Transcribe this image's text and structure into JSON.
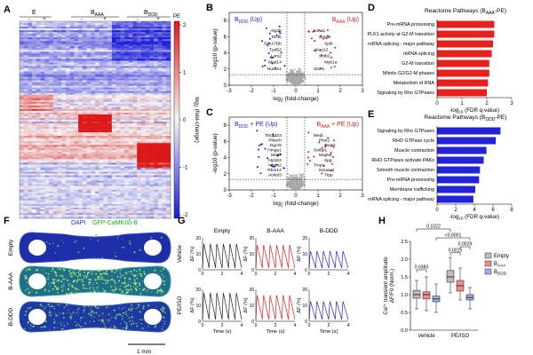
{
  "panels": {
    "A": {
      "letter": "A",
      "groups": [
        "E",
        "B",
        "B"
      ],
      "group_subs": [
        "",
        "AAA",
        "DDD"
      ],
      "pe_label": "PE",
      "col_marks": [
        "-",
        "+",
        "-",
        "+",
        "-",
        "+"
      ],
      "cbar_label": "log2 (fold-change)",
      "cbar_ticks": [
        "2",
        "1",
        "0",
        "-1",
        "-2"
      ]
    },
    "B": {
      "letter": "B",
      "left_tag": "B",
      "left_sub": "DDD",
      "left_suffix": " (Up)",
      "right_tag": "B",
      "right_sub": "AAA",
      "right_suffix": " (Up)",
      "xlabel": "log2 (fold-change)",
      "ylabel": "-log10 (p-value)",
      "xticks": [
        "-3",
        "-2",
        "-1",
        "0",
        "1",
        "2",
        "3"
      ],
      "yticks": [
        "0",
        "2",
        "4",
        "6",
        "8"
      ],
      "blue_genes": [
        "Atg2b",
        "Rictb",
        "Sec17Db",
        "Tpd52",
        "Lars2",
        "Mad14",
        "Nucks1"
      ],
      "red_genes": [
        "Lima1",
        "Smcl6",
        "Spib",
        "Akap12",
        "Sntb2",
        "Myb1a",
        "Stim1"
      ]
    },
    "C": {
      "letter": "C",
      "left_tag": "B",
      "left_sub": "DDD",
      "left_suffix": " + PE (Up)",
      "right_tag": "B",
      "right_sub": "AAA",
      "right_suffix": " + PE (Up)",
      "xlabel": "log2 (fold-change)",
      "ylabel": "-log10 (p-value)",
      "xticks": [
        "-3",
        "-2",
        "-1",
        "0",
        "1",
        "2",
        "3"
      ],
      "yticks": [
        "0",
        "2",
        "4",
        "6",
        "8"
      ],
      "blue_genes": [
        "Tbc1d23",
        "Pikach",
        "Dgcr8",
        "Hmga1",
        "Mapk",
        "Atp1b3",
        "Adgrs2",
        "Rbm14",
        "Acket3"
      ],
      "red_genes": [
        "Medt",
        "Pkot1",
        "Tacs2",
        "Setbp1",
        "Mapk8",
        "Spg",
        "Tmps",
        "Nnuwa2",
        "Trpp"
      ]
    },
    "D": {
      "letter": "D",
      "title_pre": "Reactome Pathways (B",
      "title_sub": "AAA",
      "title_post": "-PE)",
      "xlabel": "-log10 (FDR q-value)",
      "xticks": [
        "0",
        "1",
        "2",
        "3"
      ]
    },
    "E": {
      "letter": "E",
      "title_pre": "Reactome Pathways (B",
      "title_sub": "DDD",
      "title_post": "-PE)",
      "xlabel": "-log10 (FDR q-value)",
      "xticks": [
        "0",
        "2",
        "4",
        "6",
        "8"
      ]
    },
    "F": {
      "letter": "F",
      "dapi": "DAPI",
      "gfp": "GFP-CaMKIIδ-B",
      "rows": [
        "Empty",
        "B-AAA",
        "B-DDD"
      ],
      "scale": "1 mm"
    },
    "G": {
      "letter": "G",
      "cols": [
        "Empty",
        "B-AAA",
        "B-DDD"
      ],
      "row_labels": [
        "Vehicle",
        "PE/ISO"
      ],
      "ylabel": "ΔF (%)",
      "xlabel": "Time (s)",
      "yticks": [
        "0",
        "10",
        "20"
      ],
      "xticks": [
        "0",
        "2",
        "4"
      ]
    },
    "H": {
      "letter": "H",
      "ylabel1": "Ca²⁺ transient amplitude",
      "ylabel2": "ΔF/F0 (Norm.)",
      "yticks": [
        "0.0",
        "0.5",
        "1.0",
        "1.5",
        "2.0",
        "2.5"
      ],
      "groups": [
        "Vehicle",
        "PE/ISO"
      ],
      "legend": [
        "Empty",
        "B",
        "B"
      ],
      "legend_subs": [
        "",
        "AAA",
        "DDD"
      ],
      "pvals": [
        "0.1022",
        "<0.0001",
        "0.0029",
        "0.0383",
        "0.0015"
      ]
    }
  },
  "chart_data": [
    {
      "type": "bar",
      "panel": "D",
      "title": "Reactome Pathways (BAAA-PE)",
      "xlabel": "-log10 (FDR q-value)",
      "xlim": [
        0,
        3
      ],
      "categories": [
        "Pre-mRNA processing",
        "PLK1 activity at G2-M transition",
        "mRNA splicing - major pathway",
        "mRNA splicing",
        "G2-M transition",
        "Mitotic G2/G2-M phases",
        "Metabolism of RNA",
        "Signaling by Rho GTPases"
      ],
      "values": [
        2.3,
        2.3,
        2.25,
        2.2,
        2.1,
        2.1,
        2.05,
        2.0
      ],
      "color": "#e8201c"
    },
    {
      "type": "bar",
      "panel": "E",
      "title": "Reactome Pathways (BDDD-PE)",
      "xlabel": "-log10 (FDR q-value)",
      "xlim": [
        0,
        8
      ],
      "categories": [
        "Signaling by Rho GTPases",
        "RHO GTPase cycle",
        "Muscle contraction",
        "RHO GTPases activate PAKs",
        "Smooth muscle contraction",
        "Pre-mRNA processing",
        "Membrane trafficking",
        "mRNA splicing - major pathway"
      ],
      "values": [
        6.8,
        6.3,
        5.3,
        5.0,
        4.6,
        4.5,
        4.1,
        3.9
      ],
      "color": "#2323d8"
    },
    {
      "type": "box",
      "panel": "H",
      "ylabel": "Ca2+ transient amplitude ΔF/F0 (Norm.)",
      "ylim": [
        0,
        2.5
      ],
      "categories": [
        "Vehicle",
        "PE/ISO"
      ],
      "series": [
        {
          "name": "Empty",
          "color": "#bdbdbd",
          "boxes": [
            {
              "min": 0.6,
              "q1": 0.9,
              "median": 1.0,
              "q3": 1.12,
              "max": 1.4
            },
            {
              "min": 1.05,
              "q1": 1.35,
              "median": 1.5,
              "q3": 1.68,
              "max": 2.05
            }
          ]
        },
        {
          "name": "BAAA",
          "color": "#f28b8b",
          "boxes": [
            {
              "min": 0.55,
              "q1": 0.88,
              "median": 1.0,
              "q3": 1.08,
              "max": 1.5
            },
            {
              "min": 0.85,
              "q1": 1.1,
              "median": 1.25,
              "q3": 1.4,
              "max": 1.75
            }
          ]
        },
        {
          "name": "BDDD",
          "color": "#9fb0f0",
          "boxes": [
            {
              "min": 0.5,
              "q1": 0.8,
              "median": 0.88,
              "q3": 0.96,
              "max": 1.3
            },
            {
              "min": 0.6,
              "q1": 0.85,
              "median": 0.92,
              "q3": 1.0,
              "max": 1.2
            }
          ]
        }
      ]
    }
  ]
}
